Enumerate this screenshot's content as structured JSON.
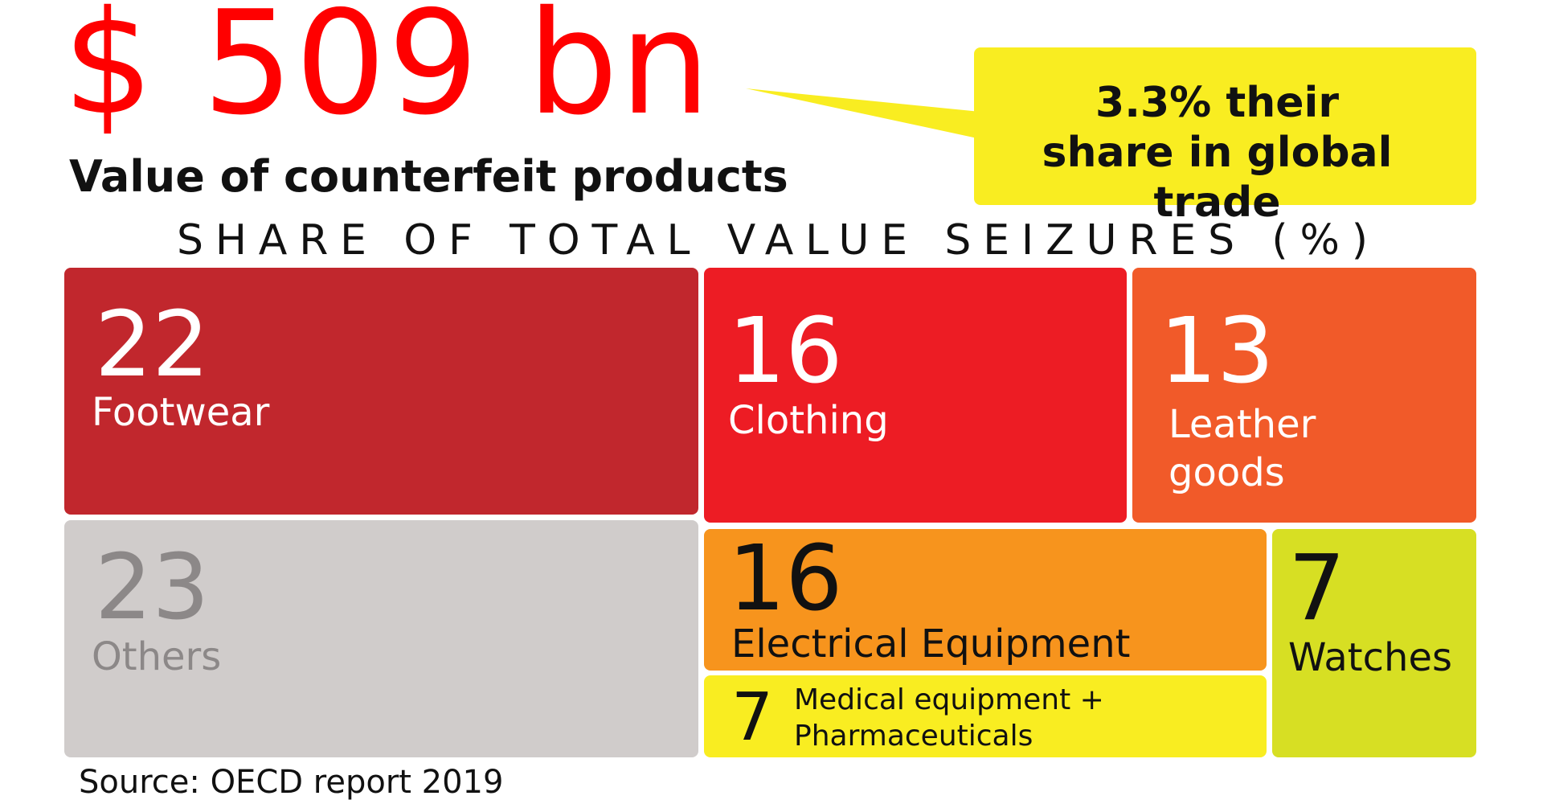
{
  "headline": "$ 509 bn",
  "headline_caption": "Value of counterfeit products",
  "callout": "3.3% their share in global trade",
  "source": "Source: OECD report 2019",
  "chart_data": {
    "type": "treemap",
    "title": "SHARE OF TOTAL VALUE SEIZURES (%)",
    "categories": [
      "Footwear",
      "Clothing",
      "Leather goods",
      "Others",
      "Electrical Equipment",
      "Medical equipment + Pharmaceuticals",
      "Watches"
    ],
    "values": [
      22,
      16,
      13,
      23,
      16,
      7,
      7
    ],
    "colors": [
      "#c1272d",
      "#ed1c24",
      "#f15a29",
      "#d0cccb",
      "#f7941d",
      "#f9ed21",
      "#d7df23"
    ]
  }
}
